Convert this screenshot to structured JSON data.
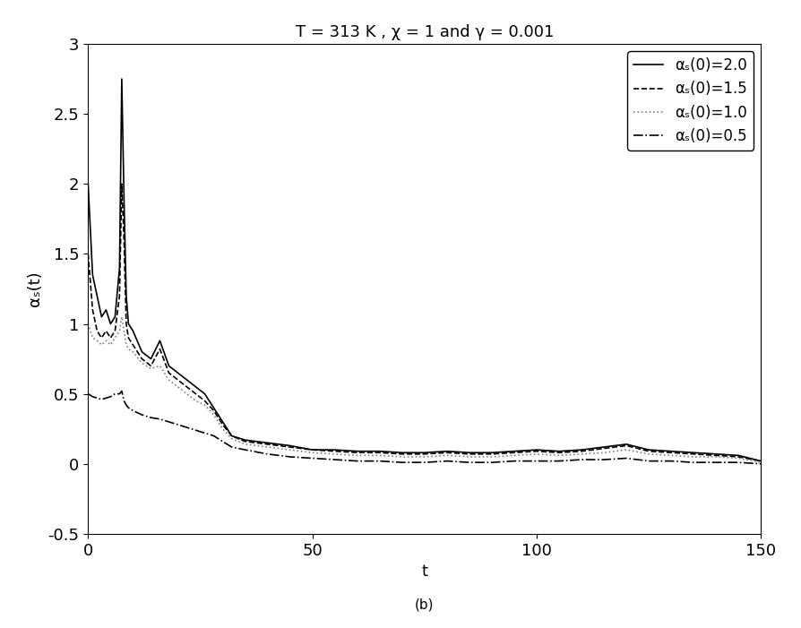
{
  "chart_data": {
    "type": "line",
    "title": "T = 313 K , χ = 1 and γ = 0.001",
    "x_label": "t",
    "y_label": "αₛ(t)",
    "caption": "(b)",
    "x": [
      0,
      1,
      2,
      3,
      4,
      5,
      6,
      7,
      7.5,
      8,
      8.5,
      9,
      10,
      12,
      14,
      16,
      18,
      20,
      22,
      24,
      26,
      28,
      30,
      32,
      35,
      40,
      45,
      50,
      55,
      60,
      65,
      70,
      75,
      80,
      85,
      90,
      95,
      100,
      105,
      110,
      115,
      120,
      125,
      130,
      135,
      140,
      145,
      150
    ],
    "series": [
      {
        "name": "αₛ(0)=2.0",
        "color": "#000000",
        "line_style": "solid",
        "values": [
          2.0,
          1.35,
          1.2,
          1.05,
          1.1,
          1.0,
          1.05,
          1.4,
          2.75,
          1.9,
          1.2,
          1.0,
          0.95,
          0.8,
          0.75,
          0.88,
          0.7,
          0.65,
          0.6,
          0.55,
          0.5,
          0.4,
          0.3,
          0.2,
          0.17,
          0.15,
          0.13,
          0.1,
          0.1,
          0.09,
          0.09,
          0.08,
          0.08,
          0.09,
          0.08,
          0.08,
          0.09,
          0.1,
          0.09,
          0.1,
          0.12,
          0.14,
          0.1,
          0.09,
          0.08,
          0.07,
          0.06,
          0.02
        ]
      },
      {
        "name": "αₛ(0)=1.5",
        "color": "#000000",
        "line_style": "dashed",
        "values": [
          1.5,
          1.1,
          0.95,
          0.9,
          0.95,
          0.9,
          0.95,
          1.2,
          2.0,
          1.6,
          1.0,
          0.9,
          0.85,
          0.75,
          0.7,
          0.82,
          0.65,
          0.6,
          0.55,
          0.5,
          0.45,
          0.38,
          0.28,
          0.2,
          0.16,
          0.14,
          0.12,
          0.1,
          0.09,
          0.08,
          0.08,
          0.07,
          0.07,
          0.08,
          0.07,
          0.07,
          0.08,
          0.09,
          0.08,
          0.09,
          0.11,
          0.13,
          0.09,
          0.08,
          0.07,
          0.06,
          0.05,
          0.02
        ]
      },
      {
        "name": "αₛ(0)=1.0",
        "color": "#808080",
        "line_style": "dotted",
        "values": [
          1.0,
          0.9,
          0.88,
          0.85,
          0.88,
          0.85,
          0.9,
          0.95,
          1.05,
          0.95,
          0.85,
          0.82,
          0.8,
          0.72,
          0.68,
          0.7,
          0.6,
          0.55,
          0.5,
          0.45,
          0.42,
          0.35,
          0.25,
          0.18,
          0.14,
          0.12,
          0.1,
          0.08,
          0.07,
          0.06,
          0.06,
          0.05,
          0.05,
          0.06,
          0.05,
          0.05,
          0.06,
          0.07,
          0.06,
          0.07,
          0.08,
          0.1,
          0.07,
          0.06,
          0.05,
          0.05,
          0.04,
          0.01
        ]
      },
      {
        "name": "αₛ(0)=0.5",
        "color": "#000000",
        "line_style": "dashdot",
        "values": [
          0.5,
          0.48,
          0.47,
          0.46,
          0.47,
          0.48,
          0.5,
          0.5,
          0.52,
          0.45,
          0.42,
          0.4,
          0.38,
          0.35,
          0.33,
          0.32,
          0.3,
          0.28,
          0.26,
          0.24,
          0.22,
          0.2,
          0.16,
          0.12,
          0.1,
          0.07,
          0.05,
          0.04,
          0.03,
          0.02,
          0.02,
          0.01,
          0.01,
          0.02,
          0.01,
          0.01,
          0.02,
          0.02,
          0.02,
          0.03,
          0.03,
          0.04,
          0.02,
          0.02,
          0.01,
          0.01,
          0.01,
          0.0
        ]
      }
    ],
    "xlim": [
      0,
      150
    ],
    "xticks": [
      0,
      50,
      100,
      150
    ],
    "ylim": [
      -0.5,
      3
    ],
    "yticks": [
      -0.5,
      0,
      0.5,
      1,
      1.5,
      2,
      2.5,
      3
    ],
    "legend": "upper right",
    "grid": false
  }
}
